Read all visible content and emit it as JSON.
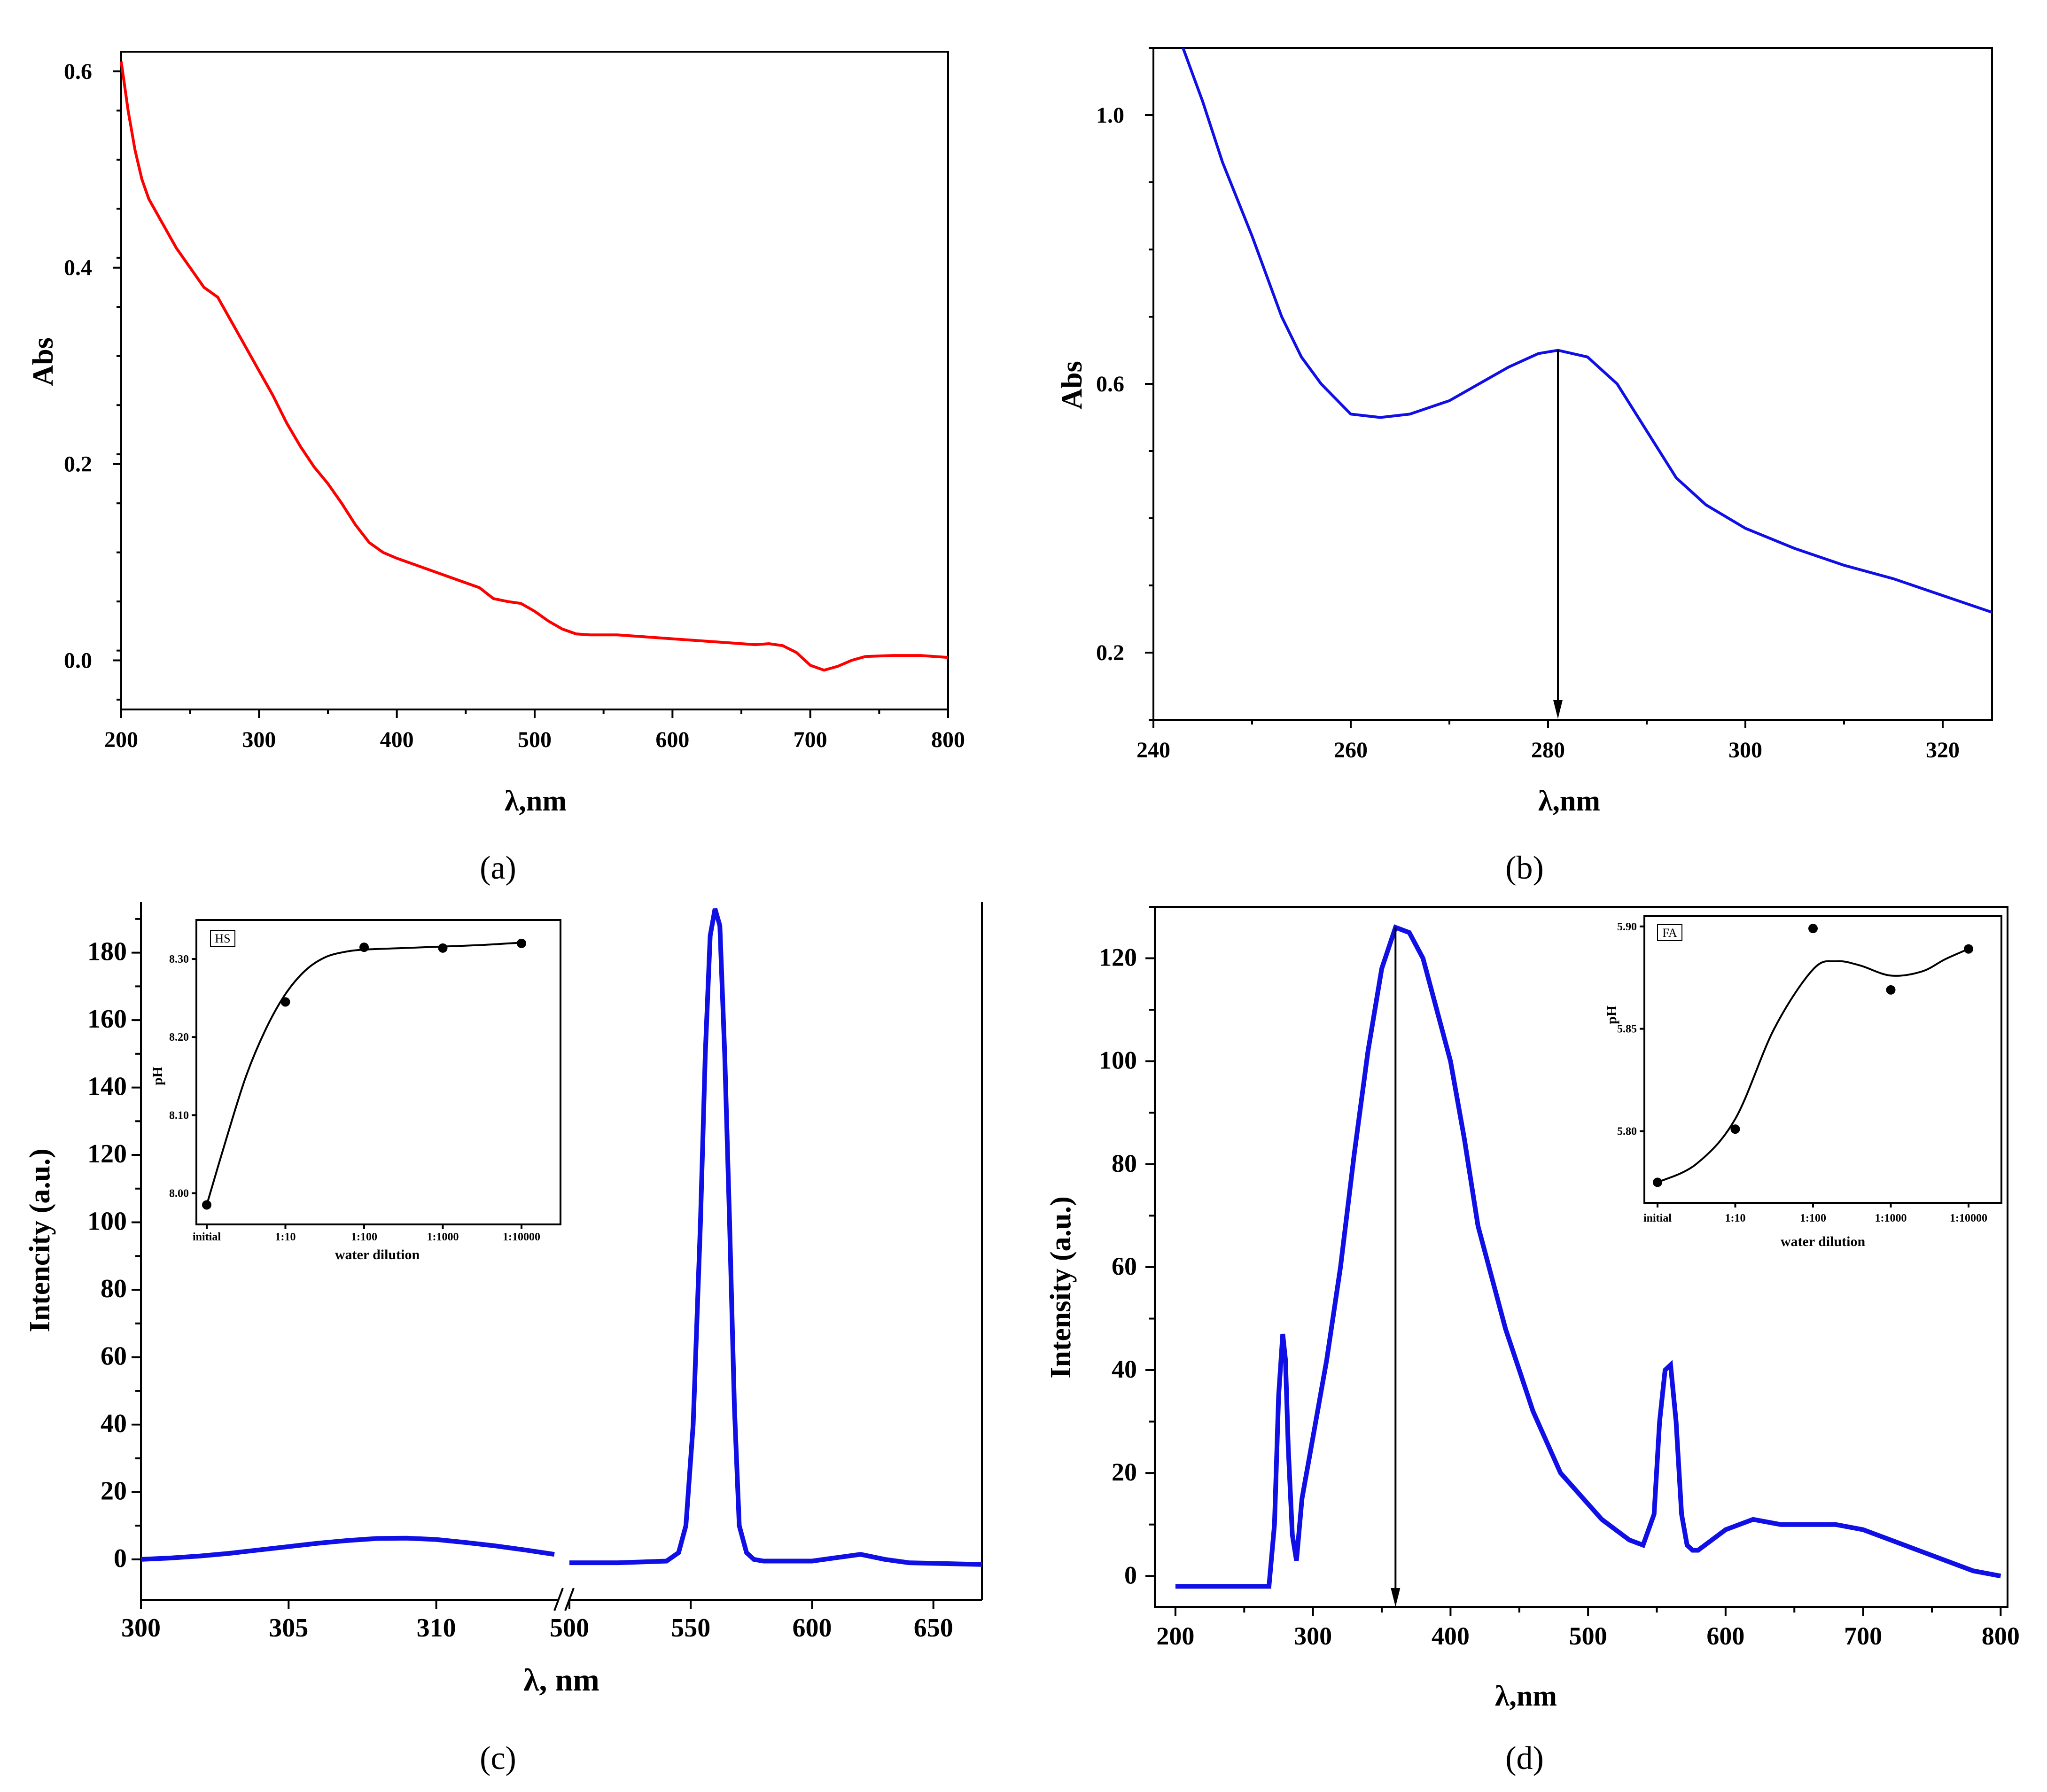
{
  "colors": {
    "red": "#ff0000",
    "blue": "#1010e6",
    "black": "#000000"
  },
  "chart_data": [
    {
      "panel": "a",
      "caption": "(a)",
      "type": "line",
      "xlabel": "λ,nm",
      "ylabel": "Abs",
      "xlim": [
        200,
        800
      ],
      "ylim": [
        -0.05,
        0.62
      ],
      "xticks": [
        "200",
        "300",
        "400",
        "500",
        "600",
        "700",
        "800"
      ],
      "yticks": [
        "0.0",
        "0.2",
        "0.4",
        "0.6"
      ],
      "series": [
        {
          "name": "absorbance",
          "color": "#ff0000",
          "x": [
            200,
            205,
            210,
            215,
            220,
            230,
            240,
            250,
            260,
            270,
            280,
            290,
            300,
            310,
            320,
            330,
            340,
            350,
            360,
            370,
            380,
            390,
            400,
            420,
            440,
            460,
            470,
            480,
            490,
            500,
            510,
            520,
            530,
            540,
            560,
            580,
            600,
            620,
            640,
            660,
            670,
            680,
            690,
            700,
            710,
            720,
            730,
            740,
            760,
            780,
            800
          ],
          "y": [
            0.61,
            0.56,
            0.52,
            0.49,
            0.47,
            0.445,
            0.42,
            0.4,
            0.38,
            0.37,
            0.345,
            0.32,
            0.295,
            0.27,
            0.242,
            0.218,
            0.197,
            0.18,
            0.16,
            0.138,
            0.12,
            0.11,
            0.104,
            0.094,
            0.084,
            0.074,
            0.063,
            0.06,
            0.058,
            0.05,
            0.04,
            0.032,
            0.027,
            0.026,
            0.026,
            0.024,
            0.022,
            0.02,
            0.018,
            0.016,
            0.017,
            0.015,
            0.008,
            -0.005,
            -0.01,
            -0.006,
            0.0,
            0.004,
            0.005,
            0.005,
            0.003
          ]
        }
      ]
    },
    {
      "panel": "b",
      "caption": "(b)",
      "type": "line",
      "xlabel": "λ,nm",
      "ylabel": "Abs",
      "xlim": [
        240,
        325
      ],
      "ylim": [
        0.1,
        1.1
      ],
      "xticks": [
        "240",
        "260",
        "280",
        "300",
        "320"
      ],
      "yticks": [
        "0.2",
        "0.6",
        "1.0"
      ],
      "annotation": {
        "type": "arrow",
        "x": 281,
        "label": ""
      },
      "series": [
        {
          "name": "absorbance",
          "color": "#1010e6",
          "x": [
            243,
            245,
            247,
            250,
            253,
            255,
            257,
            260,
            263,
            266,
            270,
            273,
            276,
            279,
            281,
            284,
            287,
            290,
            293,
            296,
            300,
            305,
            310,
            315,
            320,
            325
          ],
          "y": [
            1.1,
            1.02,
            0.93,
            0.82,
            0.7,
            0.64,
            0.6,
            0.555,
            0.55,
            0.555,
            0.575,
            0.6,
            0.625,
            0.645,
            0.65,
            0.64,
            0.6,
            0.53,
            0.46,
            0.42,
            0.385,
            0.355,
            0.33,
            0.31,
            0.285,
            0.26
          ]
        }
      ]
    },
    {
      "panel": "c",
      "caption": "(c)",
      "type": "line",
      "xlabel": "λ, nm",
      "ylabel": "Intencity (a.u.)",
      "axis_break": true,
      "xlim_left": [
        300,
        314
      ],
      "xlim_right": [
        500,
        670
      ],
      "ylim": [
        -12,
        195
      ],
      "xticks_left": [
        "300",
        "305",
        "310"
      ],
      "xticks_right": [
        "500",
        "550",
        "600",
        "650"
      ],
      "yticks": [
        "0",
        "20",
        "40",
        "60",
        "80",
        "100",
        "120",
        "140",
        "160",
        "180"
      ],
      "series": [
        {
          "name": "segment-1",
          "color": "#1010e6",
          "x": [
            300,
            301,
            302,
            303,
            304,
            305,
            306,
            307,
            308,
            309,
            310,
            311,
            312,
            313,
            314
          ],
          "y": [
            0,
            0.4,
            1,
            1.8,
            2.8,
            3.8,
            4.8,
            5.6,
            6.2,
            6.3,
            5.9,
            5,
            4,
            2.8,
            1.5
          ]
        },
        {
          "name": "segment-2",
          "color": "#1010e6",
          "x": [
            500,
            520,
            540,
            545,
            548,
            551,
            554,
            556,
            558,
            560,
            562,
            564,
            566,
            568,
            570,
            573,
            576,
            580,
            600,
            610,
            620,
            630,
            640,
            670
          ],
          "y": [
            -1,
            -1,
            -0.5,
            2,
            10,
            40,
            100,
            150,
            185,
            193,
            188,
            150,
            100,
            45,
            10,
            2,
            0,
            -0.5,
            -0.5,
            0.5,
            1.5,
            0,
            -1,
            -1.5
          ]
        }
      ],
      "inset": {
        "type": "scatter",
        "label": "HS",
        "xlabel": "water dilution",
        "ylabel": "pH",
        "categories": [
          "initial",
          "1:10",
          "1:100",
          "1:1000",
          "1:10000"
        ],
        "yticks": [
          "8.00",
          "8.10",
          "8.20",
          "8.30"
        ],
        "ylim": [
          7.96,
          8.35
        ],
        "points": [
          7.985,
          8.245,
          8.315,
          8.314,
          8.32
        ],
        "curve": [
          [
            0,
            7.985
          ],
          [
            0.25,
            8.07
          ],
          [
            0.5,
            8.15
          ],
          [
            0.75,
            8.21
          ],
          [
            1,
            8.255
          ],
          [
            1.25,
            8.285
          ],
          [
            1.5,
            8.302
          ],
          [
            1.75,
            8.309
          ],
          [
            2,
            8.312
          ],
          [
            2.5,
            8.314
          ],
          [
            3,
            8.316
          ],
          [
            3.5,
            8.318
          ],
          [
            4,
            8.321
          ]
        ]
      }
    },
    {
      "panel": "d",
      "caption": "(d)",
      "type": "line",
      "xlabel": "λ,nm",
      "ylabel": "Intensity (a.u.)",
      "xlim": [
        185,
        805
      ],
      "ylim": [
        -6,
        130
      ],
      "xticks": [
        "200",
        "300",
        "400",
        "500",
        "600",
        "700",
        "800"
      ],
      "yticks": [
        "0",
        "20",
        "40",
        "60",
        "80",
        "100",
        "120"
      ],
      "annotation": {
        "type": "arrow",
        "x": 360,
        "label": ""
      },
      "series": [
        {
          "name": "emission",
          "color": "#1010e6",
          "x": [
            200,
            250,
            268,
            272,
            275,
            278,
            280,
            282,
            285,
            288,
            292,
            300,
            310,
            320,
            330,
            340,
            350,
            360,
            370,
            380,
            390,
            400,
            410,
            420,
            430,
            440,
            450,
            460,
            470,
            480,
            490,
            500,
            510,
            520,
            530,
            540,
            548,
            552,
            556,
            560,
            564,
            568,
            572,
            576,
            580,
            590,
            600,
            610,
            620,
            640,
            660,
            680,
            700,
            720,
            740,
            760,
            780,
            800
          ],
          "y": [
            -2,
            -2,
            -2,
            10,
            35,
            47,
            42,
            25,
            8,
            3,
            15,
            27,
            42,
            60,
            82,
            102,
            118,
            126,
            125,
            120,
            110,
            100,
            85,
            68,
            58,
            48,
            40,
            32,
            26,
            20,
            17,
            14,
            11,
            9,
            7,
            6,
            12,
            30,
            40,
            41,
            30,
            12,
            6,
            5,
            5,
            7,
            9,
            10,
            11,
            10,
            10,
            10,
            9,
            7,
            5,
            3,
            1,
            0
          ]
        }
      ],
      "inset": {
        "type": "scatter",
        "label": "FA",
        "xlabel": "water dilution",
        "ylabel": "pH",
        "categories": [
          "initial",
          "1:10",
          "1:100",
          "1:1000",
          "1:10000"
        ],
        "yticks": [
          "5.80",
          "5.85",
          "5.90"
        ],
        "ylim": [
          5.765,
          5.905
        ],
        "points": [
          5.775,
          5.801,
          5.899,
          5.869,
          5.889
        ],
        "curve": [
          [
            0,
            5.775
          ],
          [
            0.5,
            5.784
          ],
          [
            1,
            5.806
          ],
          [
            1.5,
            5.85
          ],
          [
            2,
            5.879
          ],
          [
            2.3,
            5.883
          ],
          [
            2.6,
            5.881
          ],
          [
            3,
            5.876
          ],
          [
            3.4,
            5.878
          ],
          [
            3.7,
            5.884
          ],
          [
            4,
            5.889
          ]
        ]
      }
    }
  ]
}
